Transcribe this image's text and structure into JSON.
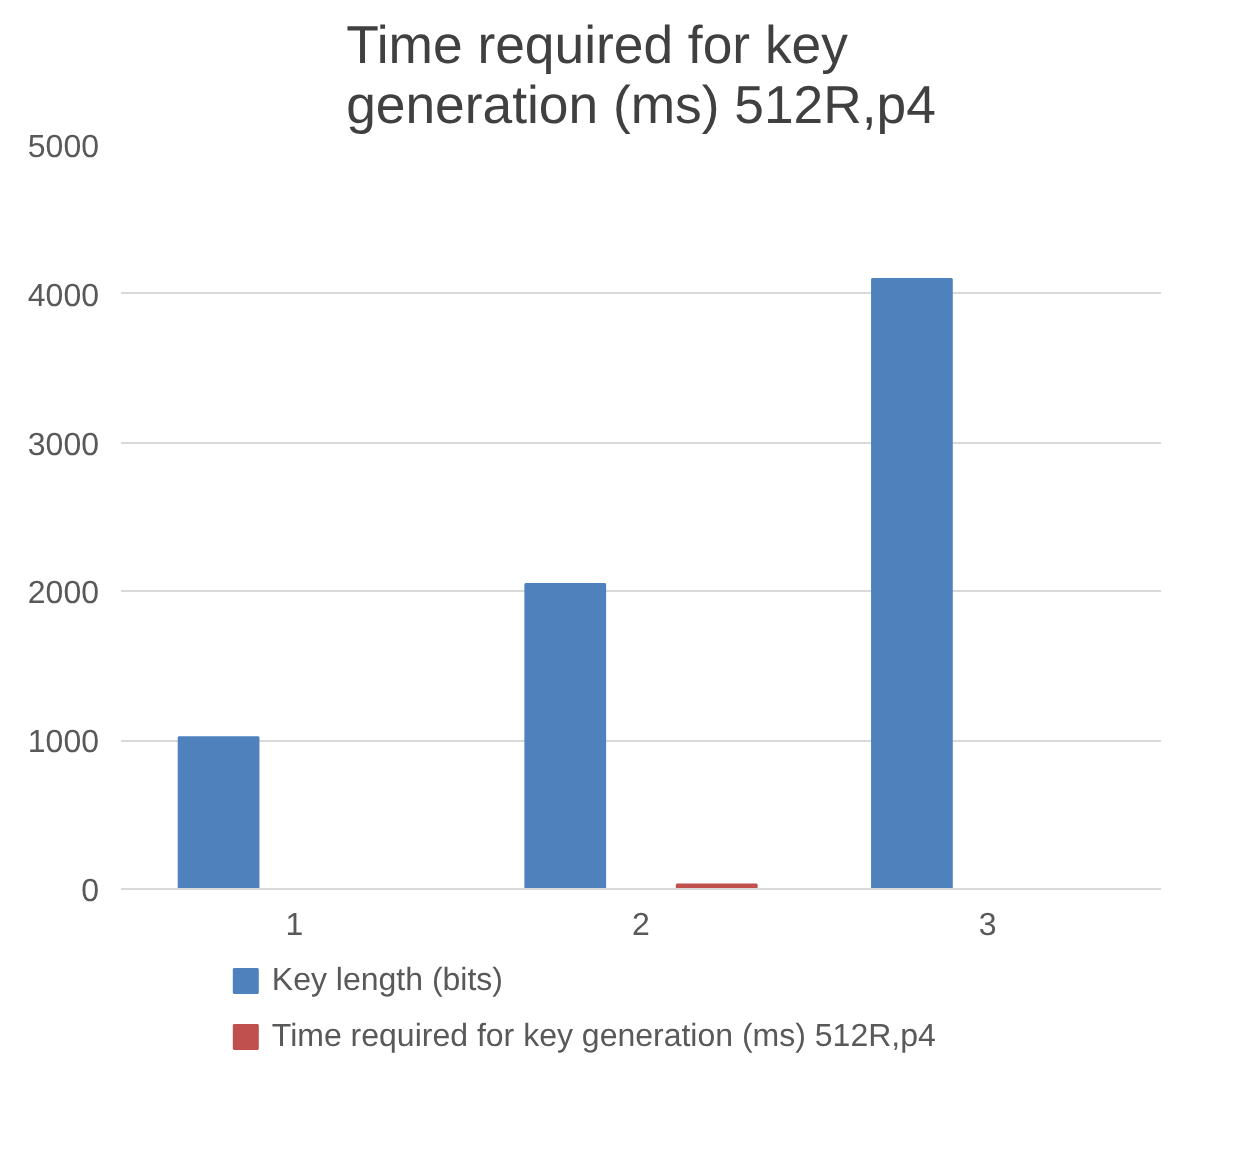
{
  "chart_data": {
    "type": "bar",
    "title": "Time required for key generation (ms) 512R,p4",
    "categories": [
      "1",
      "2",
      "3"
    ],
    "series": [
      {
        "name": "Key length (bits)",
        "color": "#4f81bd",
        "values": [
          1020,
          2050,
          4100
        ]
      },
      {
        "name": "Time required for key generation (ms) 512R,p4",
        "color": "#c0504d",
        "values": [
          0,
          30,
          0
        ]
      }
    ],
    "ylim": [
      0,
      5000
    ],
    "yticks": [
      0,
      1000,
      2000,
      3000,
      4000,
      5000
    ],
    "grid": "y",
    "legend": "bottom"
  }
}
